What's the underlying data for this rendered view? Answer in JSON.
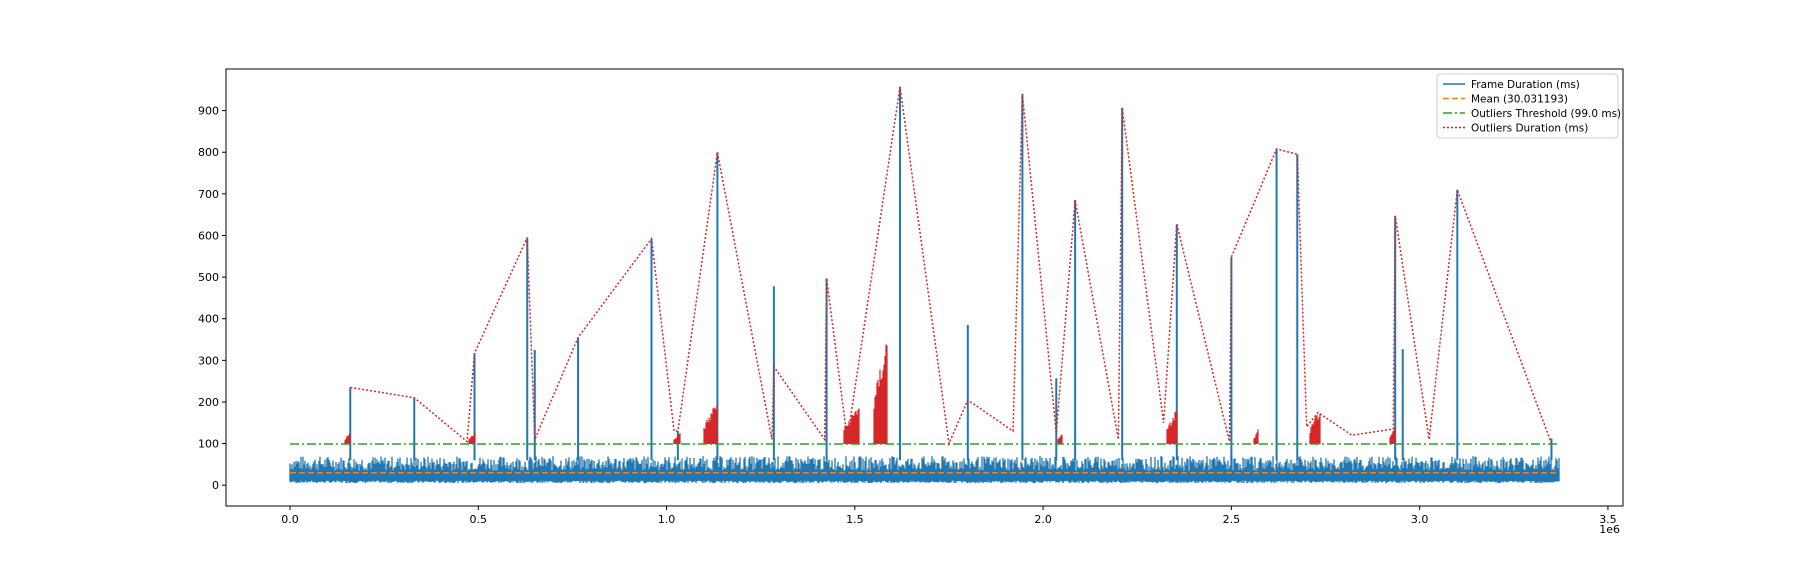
{
  "chart_data": {
    "type": "line",
    "title": "",
    "xlabel": "",
    "ylabel": "",
    "x_offset_label": "1e6",
    "xlim": [
      -0.17,
      3.54
    ],
    "ylim": [
      -50,
      1000
    ],
    "x_ticks": [
      {
        "value": 0.0,
        "label": "0.0"
      },
      {
        "value": 0.5,
        "label": "0.5"
      },
      {
        "value": 1.0,
        "label": "1.0"
      },
      {
        "value": 1.5,
        "label": "1.5"
      },
      {
        "value": 2.0,
        "label": "2.0"
      },
      {
        "value": 2.5,
        "label": "2.5"
      },
      {
        "value": 3.0,
        "label": "3.0"
      },
      {
        "value": 3.5,
        "label": "3.5"
      }
    ],
    "y_ticks": [
      {
        "value": 0,
        "label": "0"
      },
      {
        "value": 100,
        "label": "100"
      },
      {
        "value": 200,
        "label": "200"
      },
      {
        "value": 300,
        "label": "300"
      },
      {
        "value": 400,
        "label": "400"
      },
      {
        "value": 500,
        "label": "500"
      },
      {
        "value": 600,
        "label": "600"
      },
      {
        "value": 700,
        "label": "700"
      },
      {
        "value": 800,
        "label": "800"
      },
      {
        "value": 900,
        "label": "900"
      }
    ],
    "grid": false,
    "legend_position": "top-right",
    "series": [
      {
        "name": "Frame Duration (ms)",
        "style": "solid",
        "color": "#1f77b4",
        "baseline_band": {
          "x_start": 0.0,
          "x_end": 3.37,
          "low": 5,
          "high": 70
        },
        "spikes": [
          {
            "x": 0.16,
            "y": 235
          },
          {
            "x": 0.33,
            "y": 210
          },
          {
            "x": 0.49,
            "y": 317
          },
          {
            "x": 0.63,
            "y": 595
          },
          {
            "x": 0.65,
            "y": 325
          },
          {
            "x": 0.765,
            "y": 355
          },
          {
            "x": 0.96,
            "y": 592
          },
          {
            "x": 1.03,
            "y": 130
          },
          {
            "x": 1.135,
            "y": 800
          },
          {
            "x": 1.285,
            "y": 478
          },
          {
            "x": 1.425,
            "y": 497
          },
          {
            "x": 1.62,
            "y": 957
          },
          {
            "x": 1.8,
            "y": 385
          },
          {
            "x": 1.945,
            "y": 940
          },
          {
            "x": 2.035,
            "y": 257
          },
          {
            "x": 2.085,
            "y": 685
          },
          {
            "x": 2.21,
            "y": 907
          },
          {
            "x": 2.355,
            "y": 627
          },
          {
            "x": 2.5,
            "y": 548
          },
          {
            "x": 2.62,
            "y": 808
          },
          {
            "x": 2.675,
            "y": 795
          },
          {
            "x": 2.935,
            "y": 647
          },
          {
            "x": 2.955,
            "y": 327
          },
          {
            "x": 3.1,
            "y": 710
          },
          {
            "x": 3.35,
            "y": 112
          }
        ]
      },
      {
        "name": "Mean (30.031193)",
        "style": "dashed",
        "color": "#ff7f0e",
        "y": 30.031193,
        "x_range": [
          0.0,
          3.37
        ]
      },
      {
        "name": "Outliers Threshold (99.0 ms)",
        "style": "dashdot",
        "color": "#2ca02c",
        "y": 99.0,
        "x_range": [
          0.0,
          3.37
        ]
      },
      {
        "name": "Outliers Duration (ms)",
        "style": "dotted",
        "color": "#d62728",
        "x": [
          0.16,
          0.33,
          0.47,
          0.49,
          0.63,
          0.65,
          0.765,
          0.96,
          1.02,
          1.03,
          1.135,
          1.28,
          1.285,
          1.42,
          1.425,
          1.48,
          1.62,
          1.75,
          1.8,
          1.92,
          1.945,
          2.035,
          2.085,
          2.2,
          2.21,
          2.32,
          2.355,
          2.495,
          2.5,
          2.62,
          2.675,
          2.7,
          2.73,
          2.82,
          2.93,
          2.935,
          3.025,
          3.1,
          3.35
        ],
        "y": [
          235,
          210,
          105,
          317,
          595,
          110,
          355,
          592,
          130,
          130,
          800,
          110,
          285,
          110,
          497,
          110,
          957,
          100,
          205,
          130,
          940,
          125,
          685,
          110,
          907,
          150,
          627,
          105,
          548,
          808,
          795,
          140,
          175,
          120,
          135,
          647,
          110,
          710,
          100
        ],
        "bursts": [
          {
            "x_start": 0.145,
            "x_end": 0.16,
            "peak": 130
          },
          {
            "x_start": 0.475,
            "x_end": 0.49,
            "peak": 130
          },
          {
            "x_start": 1.02,
            "x_end": 1.035,
            "peak": 130
          },
          {
            "x_start": 1.1,
            "x_end": 1.135,
            "peak": 210
          },
          {
            "x_start": 1.47,
            "x_end": 1.51,
            "peak": 200
          },
          {
            "x_start": 1.55,
            "x_end": 1.585,
            "peak": 375
          },
          {
            "x_start": 2.04,
            "x_end": 2.05,
            "peak": 130
          },
          {
            "x_start": 2.33,
            "x_end": 2.355,
            "peak": 190
          },
          {
            "x_start": 2.56,
            "x_end": 2.57,
            "peak": 135
          },
          {
            "x_start": 2.71,
            "x_end": 2.735,
            "peak": 190
          },
          {
            "x_start": 2.92,
            "x_end": 2.935,
            "peak": 140
          }
        ]
      }
    ]
  },
  "legend": {
    "items": [
      {
        "label": "Frame Duration (ms)",
        "style": "solid",
        "color": "#1f77b4"
      },
      {
        "label": "Mean (30.031193)",
        "style": "dashed",
        "color": "#ff7f0e"
      },
      {
        "label": "Outliers Threshold (99.0 ms)",
        "style": "dashdot",
        "color": "#2ca02c"
      },
      {
        "label": "Outliers Duration (ms)",
        "style": "dotted",
        "color": "#d62728"
      }
    ]
  }
}
